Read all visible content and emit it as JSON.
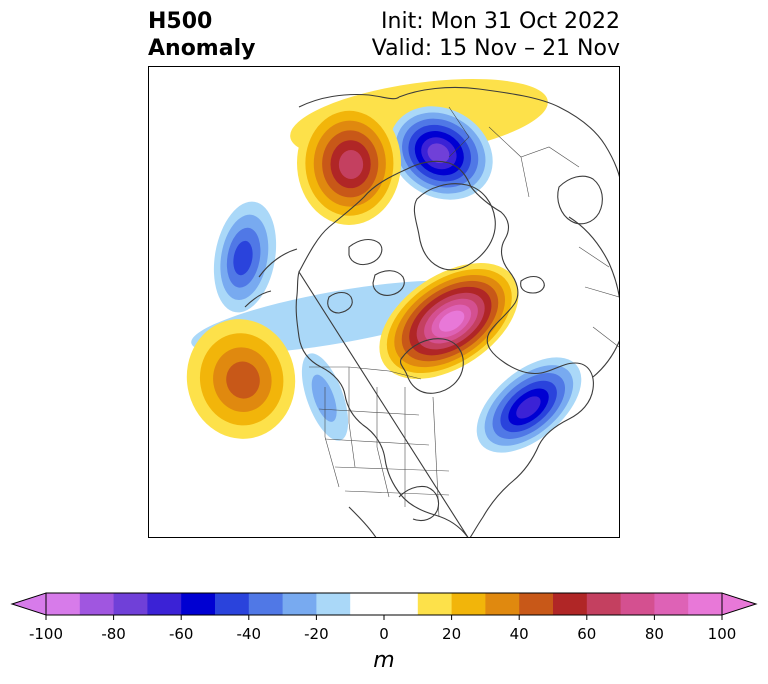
{
  "title": {
    "variable": "H500",
    "subtitle": "Anomaly",
    "init": "Init: Mon 31 Oct 2022",
    "valid": "Valid: 15 Nov – 21 Nov"
  },
  "colorbar": {
    "unit_label": "m",
    "min": -100,
    "max": 100,
    "step": 10,
    "tick_labels": [
      "-100",
      "-80",
      "-60",
      "-40",
      "-20",
      "0",
      "20",
      "40",
      "60",
      "80",
      "100"
    ],
    "tick_values": [
      -100,
      -80,
      -60,
      -40,
      -20,
      0,
      20,
      40,
      60,
      80,
      100
    ],
    "extend": "both",
    "colors": [
      "#d77bea",
      "#a056e0",
      "#7040d8",
      "#3b22d6",
      "#0000d2",
      "#2a43dc",
      "#5078e6",
      "#78aaf0",
      "#aad8f8",
      "#ffffff",
      "#ffffff",
      "#fde14a",
      "#f2b50a",
      "#e0890f",
      "#c85818",
      "#b02626",
      "#c44060",
      "#d45090",
      "#de62b6",
      "#e878d8"
    ],
    "under_color": "#d77bea",
    "over_color": "#e878d8"
  },
  "map": {
    "projection": "polar stereographic, North America / North Pole",
    "anomalies": [
      {
        "sign": "negative",
        "peak": -75,
        "region": "Greenland / Baffin Bay"
      },
      {
        "sign": "positive",
        "peak": 95,
        "region": "Hudson Bay / central Canada"
      },
      {
        "sign": "negative",
        "peak": -65,
        "region": "North Atlantic"
      },
      {
        "sign": "positive",
        "peak": 60,
        "region": "Siberia / Arctic"
      },
      {
        "sign": "negative",
        "peak": -45,
        "region": "Bering Sea / Alaska"
      },
      {
        "sign": "positive",
        "peak": 45,
        "region": "Northeast Pacific"
      },
      {
        "sign": "negative",
        "peak": -25,
        "region": "Western United States"
      }
    ]
  }
}
